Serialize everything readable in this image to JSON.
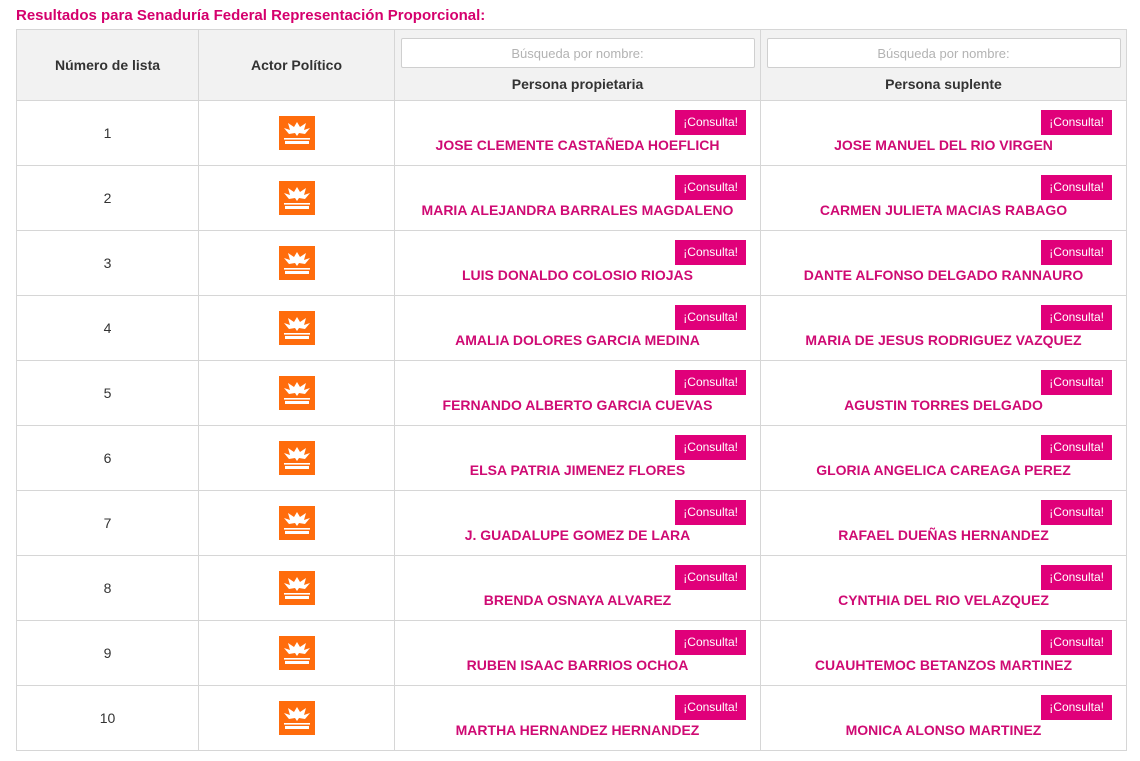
{
  "heading": "Resultados para Senaduría Federal Representación Proporcional:",
  "columns": {
    "numero": "Número de lista",
    "actor": "Actor Político",
    "propietaria": "Persona propietaria",
    "suplente": "Persona suplente"
  },
  "search": {
    "propietaria_placeholder": "Búsqueda por nombre:",
    "suplente_placeholder": "Búsqueda por nombre:"
  },
  "consulta_label": "¡Consulta!",
  "party": {
    "logo_icon": "movimiento-ciudadano-logo",
    "logo_text_top": "MOVIMIENTO",
    "logo_text_bottom": "CIUDADANO",
    "color": "#ff6c0c"
  },
  "accent_color": "#e0007a",
  "rows": [
    {
      "numero": "1",
      "propietaria": "JOSE CLEMENTE CASTAÑEDA HOEFLICH",
      "suplente": "JOSE MANUEL DEL RIO VIRGEN"
    },
    {
      "numero": "2",
      "propietaria": "MARIA ALEJANDRA BARRALES MAGDALENO",
      "suplente": "CARMEN JULIETA MACIAS RABAGO"
    },
    {
      "numero": "3",
      "propietaria": "LUIS DONALDO COLOSIO RIOJAS",
      "suplente": "DANTE ALFONSO DELGADO RANNAURO"
    },
    {
      "numero": "4",
      "propietaria": "AMALIA DOLORES GARCIA MEDINA",
      "suplente": "MARIA DE JESUS RODRIGUEZ VAZQUEZ"
    },
    {
      "numero": "5",
      "propietaria": "FERNANDO ALBERTO GARCIA CUEVAS",
      "suplente": "AGUSTIN TORRES DELGADO"
    },
    {
      "numero": "6",
      "propietaria": "ELSA PATRIA JIMENEZ FLORES",
      "suplente": "GLORIA ANGELICA CAREAGA PEREZ"
    },
    {
      "numero": "7",
      "propietaria": "J. GUADALUPE GOMEZ DE LARA",
      "suplente": "RAFAEL DUEÑAS HERNANDEZ"
    },
    {
      "numero": "8",
      "propietaria": "BRENDA OSNAYA ALVAREZ",
      "suplente": "CYNTHIA DEL RIO VELAZQUEZ"
    },
    {
      "numero": "9",
      "propietaria": "RUBEN ISAAC BARRIOS OCHOA",
      "suplente": "CUAUHTEMOC BETANZOS MARTINEZ"
    },
    {
      "numero": "10",
      "propietaria": "MARTHA HERNANDEZ HERNANDEZ",
      "suplente": "MONICA ALONSO MARTINEZ"
    }
  ]
}
